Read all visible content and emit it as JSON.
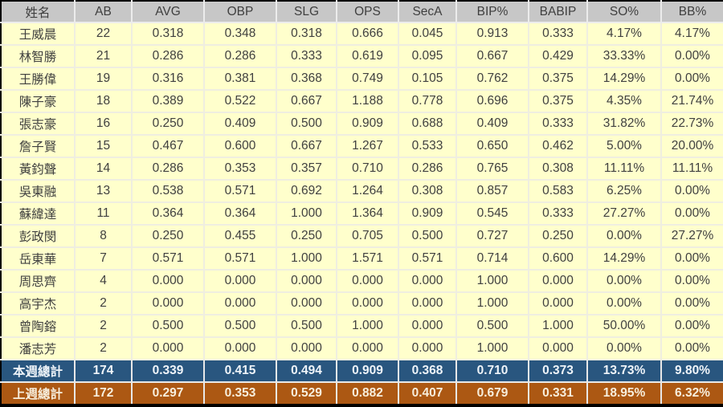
{
  "table": {
    "columns": [
      "姓名",
      "AB",
      "AVG",
      "OBP",
      "SLG",
      "OPS",
      "SecA",
      "BIP%",
      "BABIP",
      "SO%",
      "BB%"
    ],
    "players": [
      {
        "name": "王威晨",
        "stats": [
          "22",
          "0.318",
          "0.348",
          "0.318",
          "0.666",
          "0.045",
          "0.913",
          "0.333",
          "4.17%",
          "4.17%"
        ]
      },
      {
        "name": "林智勝",
        "stats": [
          "21",
          "0.286",
          "0.286",
          "0.333",
          "0.619",
          "0.095",
          "0.667",
          "0.429",
          "33.33%",
          "0.00%"
        ]
      },
      {
        "name": "王勝偉",
        "stats": [
          "19",
          "0.316",
          "0.381",
          "0.368",
          "0.749",
          "0.105",
          "0.762",
          "0.375",
          "14.29%",
          "0.00%"
        ]
      },
      {
        "name": "陳子豪",
        "stats": [
          "18",
          "0.389",
          "0.522",
          "0.667",
          "1.188",
          "0.778",
          "0.696",
          "0.375",
          "4.35%",
          "21.74%"
        ]
      },
      {
        "name": "張志豪",
        "stats": [
          "16",
          "0.250",
          "0.409",
          "0.500",
          "0.909",
          "0.688",
          "0.409",
          "0.333",
          "31.82%",
          "22.73%"
        ]
      },
      {
        "name": "詹子賢",
        "stats": [
          "15",
          "0.467",
          "0.600",
          "0.667",
          "1.267",
          "0.533",
          "0.650",
          "0.462",
          "5.00%",
          "20.00%"
        ]
      },
      {
        "name": "黃鈞聲",
        "stats": [
          "14",
          "0.286",
          "0.353",
          "0.357",
          "0.710",
          "0.286",
          "0.765",
          "0.308",
          "11.11%",
          "11.11%"
        ]
      },
      {
        "name": "吳東融",
        "stats": [
          "13",
          "0.538",
          "0.571",
          "0.692",
          "1.264",
          "0.308",
          "0.857",
          "0.583",
          "6.25%",
          "0.00%"
        ]
      },
      {
        "name": "蘇緯達",
        "stats": [
          "11",
          "0.364",
          "0.364",
          "1.000",
          "1.364",
          "0.909",
          "0.545",
          "0.333",
          "27.27%",
          "0.00%"
        ]
      },
      {
        "name": "彭政閔",
        "stats": [
          "8",
          "0.250",
          "0.455",
          "0.250",
          "0.705",
          "0.500",
          "0.727",
          "0.250",
          "0.00%",
          "27.27%"
        ]
      },
      {
        "name": "岳東華",
        "stats": [
          "7",
          "0.571",
          "0.571",
          "1.000",
          "1.571",
          "0.571",
          "0.714",
          "0.600",
          "14.29%",
          "0.00%"
        ]
      },
      {
        "name": "周思齊",
        "stats": [
          "4",
          "0.000",
          "0.000",
          "0.000",
          "0.000",
          "0.000",
          "1.000",
          "0.000",
          "0.00%",
          "0.00%"
        ]
      },
      {
        "name": "高宇杰",
        "stats": [
          "2",
          "0.000",
          "0.000",
          "0.000",
          "0.000",
          "0.000",
          "1.000",
          "0.000",
          "0.00%",
          "0.00%"
        ]
      },
      {
        "name": "曾陶鎔",
        "stats": [
          "2",
          "0.500",
          "0.500",
          "0.500",
          "1.000",
          "0.000",
          "0.500",
          "1.000",
          "50.00%",
          "0.00%"
        ]
      },
      {
        "name": "潘志芳",
        "stats": [
          "2",
          "0.000",
          "0.000",
          "0.000",
          "0.000",
          "0.000",
          "1.000",
          "0.000",
          "0.00%",
          "0.00%"
        ]
      }
    ],
    "totals": [
      {
        "type": "this_week",
        "label": "本週總計",
        "stats": [
          "174",
          "0.339",
          "0.415",
          "0.494",
          "0.909",
          "0.368",
          "0.710",
          "0.373",
          "13.73%",
          "9.80%"
        ]
      },
      {
        "type": "last_week",
        "label": "上週總計",
        "stats": [
          "172",
          "0.297",
          "0.353",
          "0.529",
          "0.882",
          "0.407",
          "0.679",
          "0.331",
          "18.95%",
          "6.32%"
        ]
      }
    ]
  },
  "colors": {
    "header_bg": "#C7C7C7",
    "header_text": "#3F3F3F",
    "row_bg": "#FFFFCC",
    "row_text": "#404040",
    "grid_line": "#EFEEE0",
    "this_week_bg": "#29567F",
    "this_week_text": "#EFF4F9",
    "last_week_bg": "#AC5813",
    "last_week_text": "#F7EEDC",
    "outer_border": "#000000"
  }
}
